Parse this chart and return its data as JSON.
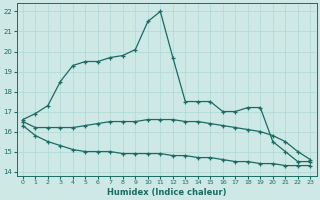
{
  "xlabel": "Humidex (Indice chaleur)",
  "xlim": [
    -0.5,
    23.5
  ],
  "ylim": [
    13.8,
    22.4
  ],
  "yticks": [
    14,
    15,
    16,
    17,
    18,
    19,
    20,
    21,
    22
  ],
  "xticks": [
    0,
    1,
    2,
    3,
    4,
    5,
    6,
    7,
    8,
    9,
    10,
    11,
    12,
    13,
    14,
    15,
    16,
    17,
    18,
    19,
    20,
    21,
    22,
    23
  ],
  "bg_color": "#cde8e5",
  "line_color": "#1a6b64",
  "grid_color": "#b0d8d4",
  "line1_x": [
    0,
    1,
    2,
    3,
    4,
    5,
    6,
    7,
    8,
    9,
    10,
    11,
    12,
    13,
    14,
    15,
    16,
    17,
    18,
    19,
    20,
    21,
    22,
    23
  ],
  "line1_y": [
    16.6,
    16.9,
    17.3,
    18.5,
    19.3,
    19.5,
    19.5,
    19.7,
    19.8,
    20.1,
    21.5,
    22.0,
    19.7,
    17.5,
    17.5,
    17.5,
    17.0,
    17.0,
    17.2,
    17.2,
    15.5,
    15.0,
    14.5,
    14.5
  ],
  "line2_x": [
    0,
    1,
    2,
    3,
    4,
    5,
    6,
    7,
    8,
    9,
    10,
    11,
    12,
    13,
    14,
    15,
    16,
    17,
    18,
    19,
    20,
    21,
    22,
    23
  ],
  "line2_y": [
    16.5,
    16.2,
    16.2,
    16.2,
    16.2,
    16.3,
    16.4,
    16.5,
    16.5,
    16.5,
    16.6,
    16.6,
    16.6,
    16.5,
    16.5,
    16.4,
    16.3,
    16.2,
    16.1,
    16.0,
    15.8,
    15.5,
    15.0,
    14.6
  ],
  "line3_x": [
    0,
    1,
    2,
    3,
    4,
    5,
    6,
    7,
    8,
    9,
    10,
    11,
    12,
    13,
    14,
    15,
    16,
    17,
    18,
    19,
    20,
    21,
    22,
    23
  ],
  "line3_y": [
    16.3,
    15.8,
    15.5,
    15.3,
    15.1,
    15.0,
    15.0,
    15.0,
    14.9,
    14.9,
    14.9,
    14.9,
    14.8,
    14.8,
    14.7,
    14.7,
    14.6,
    14.5,
    14.5,
    14.4,
    14.4,
    14.3,
    14.3,
    14.3
  ]
}
